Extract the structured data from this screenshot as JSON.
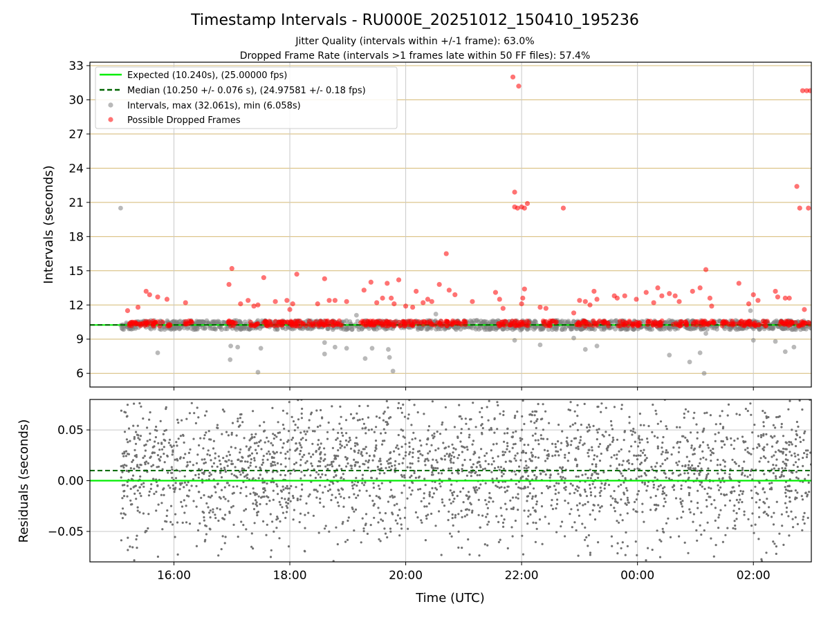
{
  "title": "Timestamp Intervals - RU000E_20251012_150410_195236",
  "subtitle_1": "Jitter Quality (intervals within +/-1 frame): 63.0%",
  "subtitle_2": "Dropped Frame Rate (intervals >1 frames late within 50 FF files): 57.4%",
  "colors": {
    "expected": "#00ee00",
    "median": "#006400",
    "interval_points": "#808080",
    "dropped_points": "#ff0000",
    "top_grid": "#d4b870",
    "grid": "#c8c8c8"
  },
  "chart_data": [
    {
      "type": "scatter",
      "panel": "top",
      "xlabel": "",
      "ylabel": "Intervals (seconds)",
      "ylim": [
        4.8,
        33.3
      ],
      "y_ticks": [
        "6",
        "9",
        "12",
        "15",
        "18",
        "21",
        "24",
        "27",
        "30",
        "33"
      ],
      "y_tick_values": [
        6,
        9,
        12,
        15,
        18,
        21,
        24,
        27,
        30,
        33
      ],
      "x_range_hours": [
        14.55,
        27.0
      ],
      "grid": true,
      "legend": {
        "placement": "upper left",
        "entries": [
          "Expected (10.240s), (25.00000 fps)",
          "Median (10.250 +/- 0.076 s), (24.97581 +/- 0.18 fps)",
          "Intervals, max (32.061s), min (6.058s)",
          "Possible Dropped Frames"
        ]
      },
      "expected_value": 10.24,
      "median_value": 10.25,
      "data_span_hours": [
        15.08,
        27.0
      ],
      "interval_band": {
        "center": 10.24,
        "half_width": 0.4
      },
      "interval_outliers": [
        {
          "x": 15.08,
          "y": 20.5
        },
        {
          "x": 15.72,
          "y": 7.8
        },
        {
          "x": 16.98,
          "y": 8.4
        },
        {
          "x": 17.1,
          "y": 8.3
        },
        {
          "x": 16.97,
          "y": 7.2
        },
        {
          "x": 17.45,
          "y": 6.1
        },
        {
          "x": 17.5,
          "y": 8.2
        },
        {
          "x": 18.6,
          "y": 8.7
        },
        {
          "x": 18.6,
          "y": 7.7
        },
        {
          "x": 18.78,
          "y": 8.3
        },
        {
          "x": 18.98,
          "y": 8.2
        },
        {
          "x": 19.15,
          "y": 11.1
        },
        {
          "x": 19.3,
          "y": 7.3
        },
        {
          "x": 19.42,
          "y": 8.2
        },
        {
          "x": 19.7,
          "y": 8.1
        },
        {
          "x": 19.72,
          "y": 7.4
        },
        {
          "x": 19.78,
          "y": 6.2
        },
        {
          "x": 20.52,
          "y": 11.2
        },
        {
          "x": 21.88,
          "y": 8.9
        },
        {
          "x": 21.98,
          "y": 9.8
        },
        {
          "x": 22.32,
          "y": 8.5
        },
        {
          "x": 22.9,
          "y": 9.1
        },
        {
          "x": 23.1,
          "y": 8.1
        },
        {
          "x": 23.3,
          "y": 8.4
        },
        {
          "x": 24.55,
          "y": 7.6
        },
        {
          "x": 24.9,
          "y": 7.0
        },
        {
          "x": 25.08,
          "y": 7.8
        },
        {
          "x": 25.15,
          "y": 6.0
        },
        {
          "x": 25.18,
          "y": 9.5
        },
        {
          "x": 25.95,
          "y": 11.5
        },
        {
          "x": 26.0,
          "y": 8.9
        },
        {
          "x": 26.38,
          "y": 8.8
        },
        {
          "x": 26.55,
          "y": 7.9
        },
        {
          "x": 26.7,
          "y": 8.3
        }
      ],
      "dropped_frames": [
        {
          "x": 15.2,
          "y": 11.5
        },
        {
          "x": 15.38,
          "y": 11.8
        },
        {
          "x": 15.52,
          "y": 13.2
        },
        {
          "x": 15.58,
          "y": 12.9
        },
        {
          "x": 15.72,
          "y": 12.7
        },
        {
          "x": 15.88,
          "y": 12.5
        },
        {
          "x": 16.2,
          "y": 12.2
        },
        {
          "x": 16.95,
          "y": 13.8
        },
        {
          "x": 17.0,
          "y": 15.2
        },
        {
          "x": 17.15,
          "y": 12.1
        },
        {
          "x": 17.28,
          "y": 12.4
        },
        {
          "x": 17.38,
          "y": 11.9
        },
        {
          "x": 17.45,
          "y": 12.0
        },
        {
          "x": 17.55,
          "y": 14.4
        },
        {
          "x": 17.75,
          "y": 12.3
        },
        {
          "x": 17.95,
          "y": 12.4
        },
        {
          "x": 18.05,
          "y": 12.1
        },
        {
          "x": 18.0,
          "y": 11.6
        },
        {
          "x": 18.12,
          "y": 14.7
        },
        {
          "x": 18.48,
          "y": 12.1
        },
        {
          "x": 18.6,
          "y": 14.3
        },
        {
          "x": 18.68,
          "y": 12.4
        },
        {
          "x": 18.78,
          "y": 12.4
        },
        {
          "x": 18.98,
          "y": 12.3
        },
        {
          "x": 19.28,
          "y": 13.3
        },
        {
          "x": 19.4,
          "y": 14.0
        },
        {
          "x": 19.5,
          "y": 12.2
        },
        {
          "x": 19.6,
          "y": 12.6
        },
        {
          "x": 19.68,
          "y": 13.9
        },
        {
          "x": 19.75,
          "y": 12.6
        },
        {
          "x": 19.8,
          "y": 12.1
        },
        {
          "x": 19.88,
          "y": 14.2
        },
        {
          "x": 20.0,
          "y": 11.9
        },
        {
          "x": 20.12,
          "y": 11.8
        },
        {
          "x": 20.18,
          "y": 13.2
        },
        {
          "x": 20.3,
          "y": 12.2
        },
        {
          "x": 20.38,
          "y": 12.5
        },
        {
          "x": 20.45,
          "y": 12.3
        },
        {
          "x": 20.58,
          "y": 13.8
        },
        {
          "x": 20.7,
          "y": 16.5
        },
        {
          "x": 20.75,
          "y": 13.3
        },
        {
          "x": 20.85,
          "y": 12.9
        },
        {
          "x": 21.15,
          "y": 12.3
        },
        {
          "x": 21.55,
          "y": 13.1
        },
        {
          "x": 21.62,
          "y": 12.5
        },
        {
          "x": 21.68,
          "y": 11.7
        },
        {
          "x": 21.85,
          "y": 32.0
        },
        {
          "x": 21.95,
          "y": 31.2
        },
        {
          "x": 21.88,
          "y": 21.9
        },
        {
          "x": 21.88,
          "y": 20.6
        },
        {
          "x": 21.93,
          "y": 20.5
        },
        {
          "x": 22.0,
          "y": 20.6
        },
        {
          "x": 22.05,
          "y": 20.5
        },
        {
          "x": 22.1,
          "y": 20.9
        },
        {
          "x": 22.02,
          "y": 12.6
        },
        {
          "x": 22.05,
          "y": 13.4
        },
        {
          "x": 22.0,
          "y": 12.1
        },
        {
          "x": 22.32,
          "y": 11.8
        },
        {
          "x": 22.42,
          "y": 11.7
        },
        {
          "x": 22.72,
          "y": 20.5
        },
        {
          "x": 22.9,
          "y": 11.3
        },
        {
          "x": 23.0,
          "y": 12.4
        },
        {
          "x": 23.1,
          "y": 12.3
        },
        {
          "x": 23.18,
          "y": 12.0
        },
        {
          "x": 23.25,
          "y": 13.2
        },
        {
          "x": 23.3,
          "y": 12.5
        },
        {
          "x": 23.6,
          "y": 12.8
        },
        {
          "x": 23.65,
          "y": 12.6
        },
        {
          "x": 23.78,
          "y": 12.8
        },
        {
          "x": 23.98,
          "y": 12.5
        },
        {
          "x": 24.15,
          "y": 13.1
        },
        {
          "x": 24.28,
          "y": 12.2
        },
        {
          "x": 24.35,
          "y": 13.5
        },
        {
          "x": 24.42,
          "y": 12.8
        },
        {
          "x": 24.55,
          "y": 13.0
        },
        {
          "x": 24.65,
          "y": 12.8
        },
        {
          "x": 24.72,
          "y": 12.3
        },
        {
          "x": 24.95,
          "y": 13.2
        },
        {
          "x": 25.08,
          "y": 13.5
        },
        {
          "x": 25.18,
          "y": 15.1
        },
        {
          "x": 25.25,
          "y": 12.6
        },
        {
          "x": 25.28,
          "y": 11.9
        },
        {
          "x": 25.75,
          "y": 13.9
        },
        {
          "x": 26.0,
          "y": 12.9
        },
        {
          "x": 25.92,
          "y": 12.1
        },
        {
          "x": 26.08,
          "y": 12.4
        },
        {
          "x": 26.38,
          "y": 13.2
        },
        {
          "x": 26.42,
          "y": 12.7
        },
        {
          "x": 26.55,
          "y": 12.6
        },
        {
          "x": 26.62,
          "y": 12.6
        },
        {
          "x": 26.75,
          "y": 22.4
        },
        {
          "x": 26.8,
          "y": 20.5
        },
        {
          "x": 26.95,
          "y": 20.5
        },
        {
          "x": 26.88,
          "y": 11.6
        },
        {
          "x": 26.85,
          "y": 30.8
        },
        {
          "x": 26.92,
          "y": 30.8
        },
        {
          "x": 26.98,
          "y": 30.8
        }
      ],
      "dropped_clusters": [
        [
          15.22,
          15.95
        ],
        [
          16.15,
          16.32
        ],
        [
          16.92,
          17.1
        ],
        [
          17.3,
          17.45
        ],
        [
          17.55,
          18.6
        ],
        [
          18.55,
          18.9
        ],
        [
          19.18,
          20.5
        ],
        [
          20.55,
          21.05
        ],
        [
          21.55,
          22.15
        ],
        [
          22.35,
          22.6
        ],
        [
          22.95,
          23.5
        ],
        [
          23.65,
          24.05
        ],
        [
          24.15,
          24.45
        ],
        [
          24.6,
          24.85
        ],
        [
          24.95,
          25.35
        ],
        [
          25.45,
          25.7
        ],
        [
          25.75,
          26.25
        ],
        [
          26.45,
          27.0
        ]
      ]
    },
    {
      "type": "scatter",
      "panel": "bottom",
      "xlabel": "Time (UTC)",
      "ylabel": "Residuals (seconds)",
      "ylim": [
        -0.08,
        0.08
      ],
      "y_ticks": [
        "−0.05",
        "0.00",
        "0.05"
      ],
      "y_tick_values": [
        -0.05,
        0.0,
        0.05
      ],
      "x_ticks": [
        "16:00",
        "18:00",
        "20:00",
        "22:00",
        "00:00",
        "02:00"
      ],
      "x_tick_values_hours": [
        16,
        18,
        20,
        22,
        24,
        26
      ],
      "x_range_hours": [
        14.55,
        27.0
      ],
      "grid": true,
      "expected_residual": 0.0,
      "median_residual": 0.01,
      "residual_points_count": 2600,
      "residual_spread": {
        "center": 0.01,
        "std": 0.035,
        "min": -0.08,
        "max": 0.08
      },
      "data_span_hours": [
        15.08,
        27.0
      ]
    }
  ]
}
